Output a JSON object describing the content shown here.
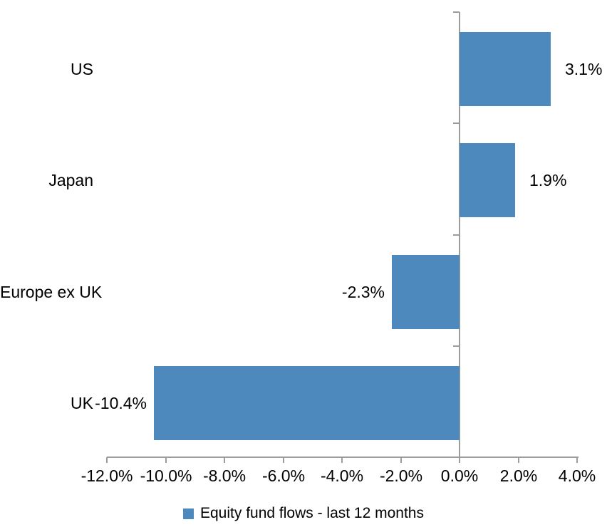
{
  "chart_data": {
    "type": "bar",
    "orientation": "horizontal",
    "title": "",
    "legend": "Equity fund flows - last 12 months",
    "legend_position": "bottom",
    "categories": [
      "US",
      "Japan",
      "Europe ex UK",
      "UK"
    ],
    "values": [
      3.1,
      1.9,
      -2.3,
      -10.4
    ],
    "value_labels": [
      "3.1%",
      "1.9%",
      "-2.3%",
      "-10.4%"
    ],
    "x_axis": {
      "min": -12,
      "max": 4,
      "step": 2,
      "tick_values": [
        -12,
        -10,
        -8,
        -6,
        -4,
        -2,
        0,
        2,
        4
      ],
      "tick_labels": [
        "-12.0%",
        "-10.0%",
        "-8.0%",
        "-6.0%",
        "-4.0%",
        "-2.0%",
        "0.0%",
        "2.0%",
        "4.0%"
      ]
    },
    "grid": false,
    "colors": {
      "bar": "#4E89BE",
      "axis": "#9C9C9C",
      "text": "#000000"
    }
  }
}
